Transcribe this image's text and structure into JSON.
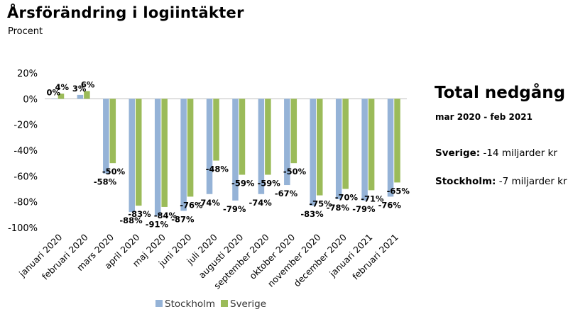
{
  "title": "Årsförändring i logiintäkter",
  "subtitle": "Procent",
  "summary": {
    "heading": "Total nedgång",
    "period": "mar 2020 - feb 2021",
    "stats": [
      {
        "label": "Sverige:",
        "value": "-14 miljarder kr"
      },
      {
        "label": "Stockholm:",
        "value": "-7 miljarder kr"
      }
    ]
  },
  "chart_data": {
    "type": "bar",
    "title": "Årsförändring i logiintäkter",
    "subtitle": "Procent",
    "xlabel": "",
    "ylabel": "",
    "categories": [
      "januari 2020",
      "februari 2020",
      "mars 2020",
      "april 2020",
      "maj 2020",
      "juni 2020",
      "juli 2020",
      "augusti 2020",
      "september 2020",
      "oktober 2020",
      "november 2020",
      "december 2020",
      "januari 2021",
      "februari 2021"
    ],
    "series": [
      {
        "name": "Stockholm",
        "color": "#95b3d7",
        "values": [
          0,
          3,
          -58,
          -88,
          -91,
          -87,
          -74,
          -79,
          -74,
          -67,
          -83,
          -78,
          -79,
          -76
        ],
        "labels": [
          "0%",
          "3%",
          "-58%",
          "-88%",
          "-91%",
          "-87%",
          "-74%",
          "-79%",
          "-74%",
          "-67%",
          "-83%",
          "-78%",
          "-79%",
          "-76%"
        ]
      },
      {
        "name": "Sverige",
        "color": "#9bbb59",
        "values": [
          4,
          6,
          -50,
          -83,
          -84,
          -76,
          -48,
          -59,
          -59,
          -50,
          -75,
          -70,
          -71,
          -65
        ],
        "labels": [
          "4%",
          "6%",
          "-50%",
          "-83%",
          "-84%",
          "-76%",
          "-48%",
          "-59%",
          "-59%",
          "-50%",
          "-75%",
          "-70%",
          "-71%",
          "-65%"
        ]
      }
    ],
    "ylim": [
      -100,
      20
    ],
    "yticks": [
      20,
      0,
      -20,
      -40,
      -60,
      -80,
      -100
    ],
    "ytick_labels": [
      "20%",
      "0%",
      "-20%",
      "-40%",
      "-60%",
      "-80%",
      "-100%"
    ],
    "grid": false,
    "legend": "bottom"
  }
}
